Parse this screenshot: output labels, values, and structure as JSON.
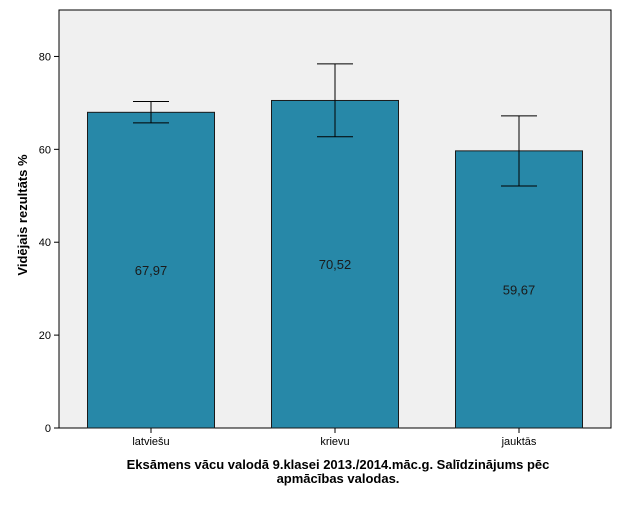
{
  "chart_data": {
    "type": "bar",
    "categories": [
      "latviešu",
      "krievu",
      "jauktās"
    ],
    "values": [
      67.97,
      70.52,
      59.67
    ],
    "data_labels": [
      "67,97",
      "70,52",
      "59,67"
    ],
    "error_bars": [
      {
        "low": 65.7,
        "high": 70.3
      },
      {
        "low": 62.7,
        "high": 78.4
      },
      {
        "low": 52.1,
        "high": 67.2
      }
    ],
    "title": "",
    "xlabel_lines": [
      "Eksāmens vācu valodā 9.klasei 2013./2014.māc.g. Salīdzinājums pēc",
      "apmācības valodas."
    ],
    "ylabel": "Vidējais rezultāts %",
    "ylim": [
      0,
      90
    ],
    "yticks": [
      0,
      20,
      40,
      60,
      80
    ],
    "grid": false,
    "legend": "none",
    "colors": {
      "bar": "#2788a8",
      "bar_stroke": "#1a1a1a",
      "plot_background": "#f0f0f0",
      "axis": "#000000"
    }
  }
}
